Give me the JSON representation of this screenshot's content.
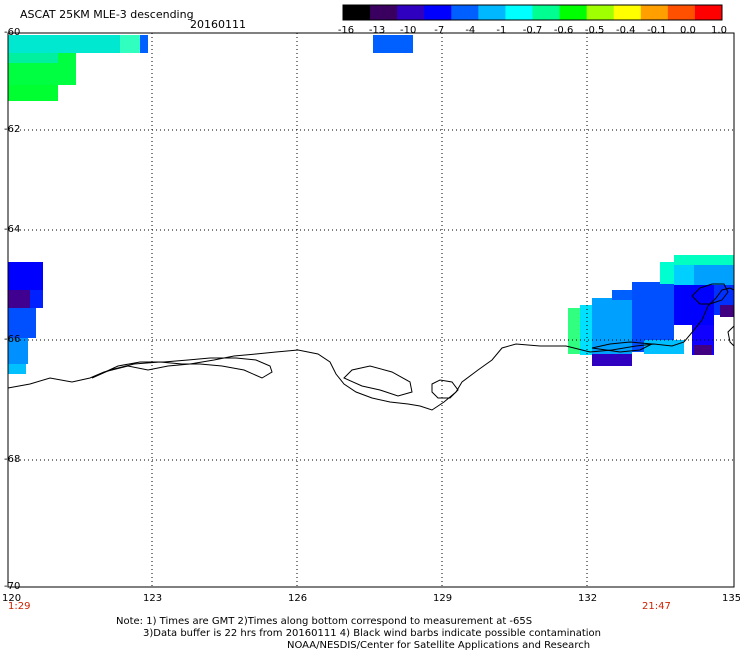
{
  "header": {
    "title": "ASCAT 25KM MLE-3 descending",
    "date": "20160111"
  },
  "colorbar": {
    "labels": [
      "-16",
      "-13",
      "-10",
      "-7",
      "-4",
      "-1",
      "-0.7",
      "-0.6",
      "-0.5",
      "-0.4",
      "-0.1",
      "0.0",
      "1.0"
    ],
    "colors": [
      "#000000",
      "#3a0060",
      "#3000c0",
      "#0000ff",
      "#0060ff",
      "#00b8ff",
      "#00ffff",
      "#00ff90",
      "#00ff00",
      "#a0ff00",
      "#ffff00",
      "#ffa000",
      "#ff5000",
      "#ff0000"
    ]
  },
  "axes": {
    "lon_labels": [
      "120",
      "123",
      "126",
      "129",
      "132",
      "135"
    ],
    "lat_labels": [
      "-60",
      "-62",
      "-64",
      "-66",
      "-68",
      "-70"
    ]
  },
  "times": {
    "left": "1:29",
    "right": "21:47"
  },
  "notes": [
    "Note: 1) Times are GMT 2)Times along bottom correspond to measurement at -65S",
    "3)Data buffer is 22 hrs from 20160111 4) Black wind barbs indicate possible contamination",
    "NOAA/NESDIS/Center for Satellite Applications and Research"
  ]
}
